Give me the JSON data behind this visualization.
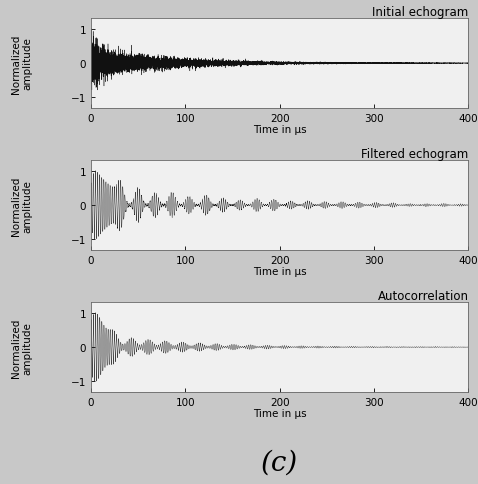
{
  "title1": "Initial echogram",
  "title2": "Filtered echogram",
  "title3": "Autocorrelation",
  "xlabel": "Time in μs",
  "ylabel": "Normalized\namplitude",
  "xlim": [
    0,
    400
  ],
  "ylim": [
    -1.3,
    1.3
  ],
  "yticks": [
    -1,
    0,
    1
  ],
  "xticks": [
    0,
    100,
    200,
    300,
    400
  ],
  "caption": "(c)",
  "line_color": "#111111",
  "plot_bg": "#f0f0f0",
  "fig_bg": "#c8c8c8",
  "title_fontsize": 8.5,
  "label_fontsize": 7.5,
  "tick_fontsize": 7.5,
  "caption_fontsize": 20
}
